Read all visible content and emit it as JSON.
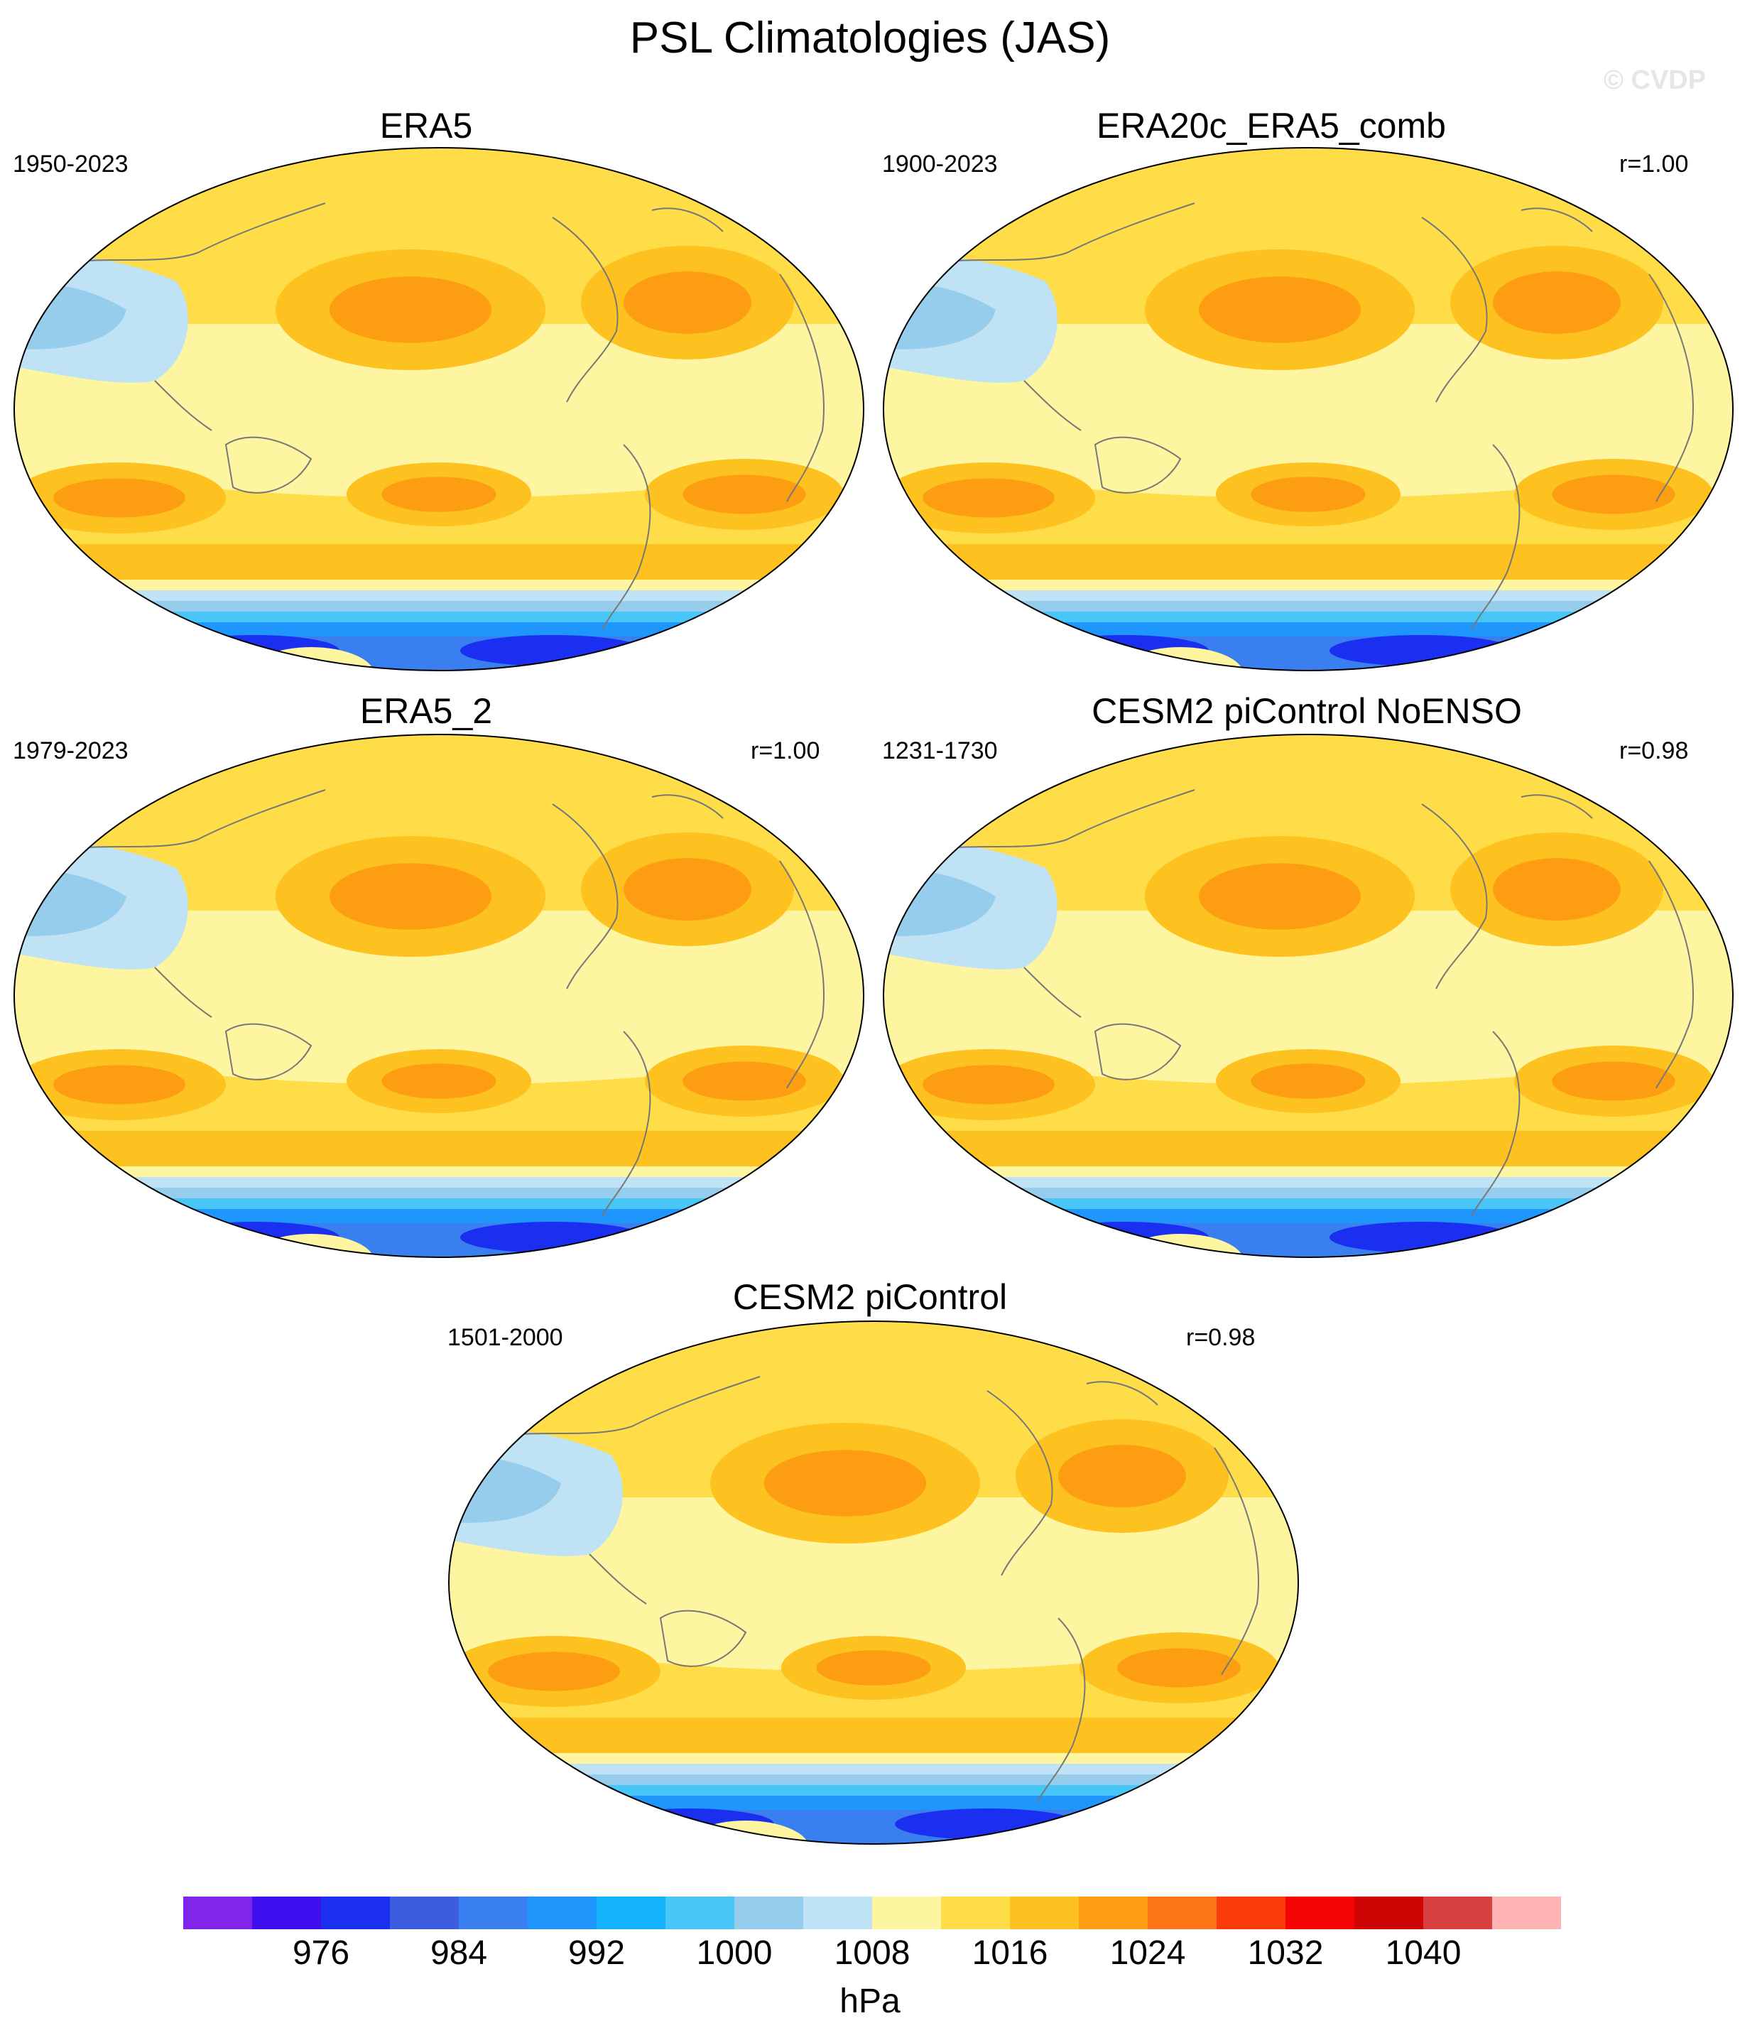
{
  "title": "PSL Climatologies (JAS)",
  "watermark": "© CVDP",
  "panels": [
    {
      "title": "ERA5",
      "years": "1950-2023",
      "corr": ""
    },
    {
      "title": "ERA20c_ERA5_comb",
      "years": "1900-2023",
      "corr": "r=1.00"
    },
    {
      "title": "ERA5_2",
      "years": "1979-2023",
      "corr": "r=1.00"
    },
    {
      "title": "CESM2 piControl NoENSO",
      "years": "1231-1730",
      "corr": "r=0.98"
    },
    {
      "title": "CESM2 piControl",
      "years": "1501-2000",
      "corr": "r=0.98"
    }
  ],
  "colorbar": {
    "units": "hPa",
    "tick_labels": [
      "976",
      "984",
      "992",
      "1000",
      "1008",
      "1016",
      "1024",
      "1032",
      "1040"
    ],
    "colors": [
      "#7f26ea",
      "#3e10f0",
      "#1a2ff0",
      "#3b5ee0",
      "#3a7fef",
      "#1f96fb",
      "#14b4fb",
      "#48c6f8",
      "#96cdec",
      "#bfe2f5",
      "#fef5a0",
      "#fedd48",
      "#fdc21f",
      "#fd9e12",
      "#fc7516",
      "#fd3c0b",
      "#f60303",
      "#cf0505",
      "#d84040",
      "#feb4b4"
    ]
  }
}
